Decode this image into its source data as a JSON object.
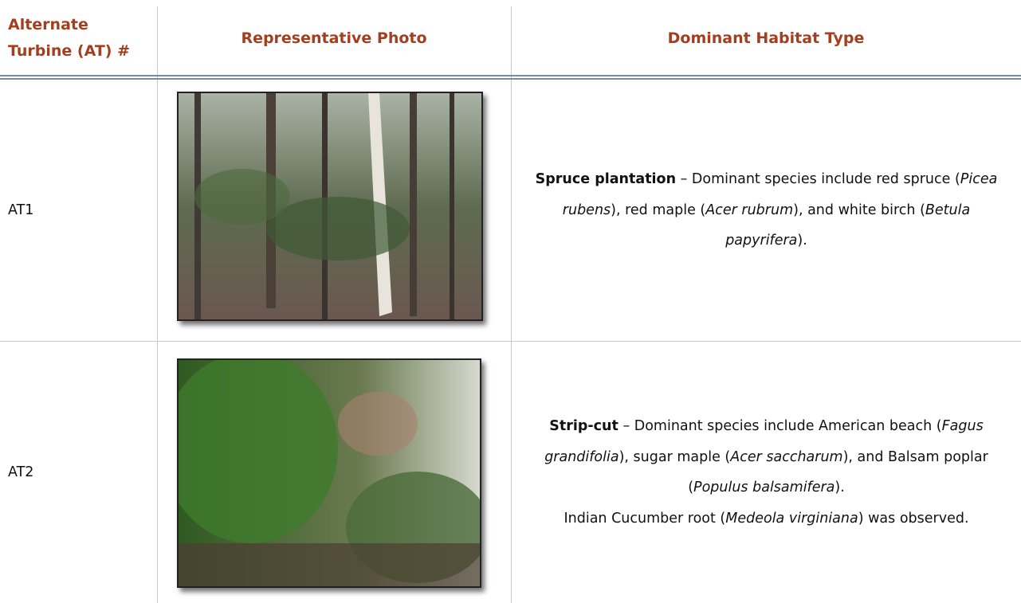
{
  "table": {
    "headers": [
      "Alternate Turbine (AT) #",
      "Representative Photo",
      "Dominant Habitat Type"
    ],
    "rows": [
      {
        "id": "AT1",
        "habitat": [
          [
            {
              "text": "Spruce plantation",
              "style": "bold"
            },
            " – Dominant species include red spruce (",
            {
              "text": "Picea rubens",
              "style": "italic"
            },
            "), red maple (",
            {
              "text": "Acer rubrum",
              "style": "italic"
            },
            "), and white birch (",
            {
              "text": "Betula papyrifera",
              "style": "italic"
            },
            ")."
          ]
        ]
      },
      {
        "id": "AT2",
        "habitat": [
          [
            {
              "text": "Strip-cut",
              "style": "bold"
            },
            " – Dominant species include American beach (",
            {
              "text": "Fagus grandifolia",
              "style": "italic"
            },
            "), sugar maple (",
            {
              "text": "Acer saccharum",
              "style": "italic"
            },
            "), and Balsam poplar (",
            {
              "text": "Populus balsamifera",
              "style": "italic"
            },
            ")."
          ],
          [
            "Indian Cucumber root (",
            {
              "text": "Medeola virginiana",
              "style": "italic"
            },
            ") was observed."
          ]
        ]
      }
    ]
  }
}
